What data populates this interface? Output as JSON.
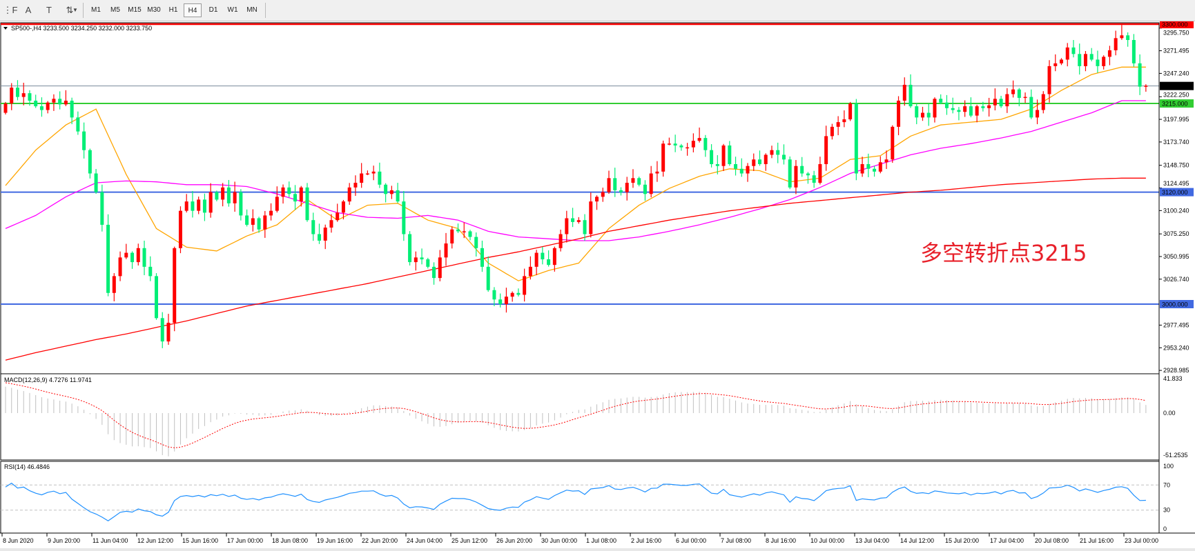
{
  "toolbar": {
    "icons": [
      "fibonacci-icon",
      "text-icon",
      "text-label-icon",
      "arrows-icon"
    ],
    "icon_glyphs": [
      "⋮F",
      "A",
      "T",
      "⇅"
    ],
    "timeframes": [
      "M1",
      "M5",
      "M15",
      "M30",
      "H1",
      "H4",
      "D1",
      "W1",
      "MN"
    ],
    "active_timeframe": "H4"
  },
  "chart": {
    "header": "SP500-,H4  3233.500 3234.250 3232.000 3233.750",
    "annotation": "多空转折点3215",
    "annotation_color": "#e8202a",
    "bull_color": "#ff0000",
    "bear_color": "#00ee76",
    "first_open": 3205,
    "closes": [
      3215,
      3232,
      3222,
      3226,
      3218,
      3212,
      3208,
      3216,
      3220,
      3214,
      3218,
      3200,
      3185,
      3165,
      3140,
      3120,
      3085,
      3012,
      3030,
      3050,
      3055,
      3045,
      3060,
      3040,
      3030,
      2985,
      2960,
      2980,
      3060,
      3100,
      3110,
      3100,
      3112,
      3098,
      3120,
      3112,
      3125,
      3108,
      3120,
      3095,
      3085,
      3092,
      3080,
      3095,
      3100,
      3115,
      3125,
      3118,
      3110,
      3125,
      3090,
      3075,
      3068,
      3082,
      3090,
      3098,
      3110,
      3125,
      3130,
      3140,
      3140,
      3142,
      3128,
      3118,
      3122,
      3110,
      3075,
      3045,
      3050,
      3048,
      3040,
      3028,
      3050,
      3065,
      3080,
      3078,
      3078,
      3072,
      3060,
      3040,
      3015,
      3005,
      3000,
      3008,
      3012,
      3010,
      3030,
      3040,
      3055,
      3048,
      3042,
      3060,
      3075,
      3092,
      3088,
      3090,
      3075,
      3110,
      3115,
      3120,
      3135,
      3122,
      3120,
      3130,
      3135,
      3128,
      3118,
      3140,
      3142,
      3172,
      3172,
      3170,
      3168,
      3168,
      3175,
      3178,
      3165,
      3150,
      3148,
      3170,
      3150,
      3145,
      3140,
      3148,
      3155,
      3150,
      3160,
      3165,
      3160,
      3155,
      3125,
      3148,
      3140,
      3138,
      3130,
      3150,
      3180,
      3190,
      3195,
      3198,
      3215,
      3140,
      3150,
      3145,
      3142,
      3152,
      3155,
      3190,
      3218,
      3235,
      3212,
      3200,
      3205,
      3200,
      3220,
      3216,
      3210,
      3208,
      3206,
      3212,
      3202,
      3212,
      3210,
      3213,
      3220,
      3212,
      3225,
      3230,
      3221,
      3222,
      3200,
      3208,
      3225,
      3255,
      3258,
      3262,
      3275,
      3268,
      3255,
      3268,
      3262,
      3255,
      3265,
      3272,
      3285,
      3288,
      3283,
      3258,
      3233,
      3234
    ],
    "moving_averages": [
      {
        "color": "#ffa500",
        "values": [
          3127,
          3165,
          3192,
          3209,
          3139,
          3081,
          3061,
          3057,
          3073,
          3085,
          3112,
          3090,
          3106,
          3108,
          3090,
          3081,
          3044,
          3025,
          3036,
          3044,
          3081,
          3106,
          3124,
          3137,
          3145,
          3143,
          3131,
          3135,
          3155,
          3159,
          3180,
          3192,
          3195,
          3198,
          3209,
          3229,
          3246,
          3254
        ]
      },
      {
        "color": "#ff00ff",
        "values": [
          3081,
          3095,
          3115,
          3130,
          3132,
          3131,
          3128,
          3128,
          3126,
          3118,
          3108,
          3098,
          3093,
          3092,
          3095,
          3090,
          3078,
          3072,
          3070,
          3068,
          3068,
          3072,
          3078,
          3085,
          3093,
          3102,
          3112,
          3125,
          3140,
          3150,
          3160,
          3167,
          3172,
          3178,
          3185,
          3195,
          3205,
          3218
        ]
      },
      {
        "color": "#ff0000",
        "values": [
          2940,
          2948,
          2955,
          2962,
          2968,
          2975,
          2982,
          2990,
          2998,
          3004,
          3010,
          3016,
          3022,
          3029,
          3036,
          3043,
          3050,
          3056,
          3063,
          3070,
          3078,
          3084,
          3090,
          3095,
          3100,
          3104,
          3108,
          3111,
          3114,
          3117,
          3120,
          3122,
          3125,
          3128,
          3130,
          3132,
          3134,
          3135
        ]
      }
    ],
    "hlines": [
      {
        "price": 3300,
        "label": "3300.000",
        "color": "#ff0000",
        "text_color": "#000000"
      },
      {
        "price": 3233.75,
        "label": "3233.750",
        "color": "#778899",
        "text_color": "#ffffff",
        "box": "#000000"
      },
      {
        "price": 3215,
        "label": "3215.000",
        "color": "#32cd32",
        "text_color": "#ffffff"
      },
      {
        "price": 3120,
        "label": "3120.000",
        "color": "#4169e1",
        "text_color": "#ffffff"
      },
      {
        "price": 3000,
        "label": "3000.000",
        "color": "#4169e1",
        "text_color": "#ffffff"
      }
    ],
    "price_ticks": [
      "3295.750",
      "3271.495",
      "3247.240",
      "3222.250",
      "3197.995",
      "3173.740",
      "3148.750",
      "3124.495",
      "3100.240",
      "3075.250",
      "3050.995",
      "3026.740",
      "2977.495",
      "2953.240",
      "2928.985"
    ]
  },
  "macd": {
    "label": "MACD(12,26,9) 4.7276 11.9741",
    "ticks": [
      "41.833",
      "0.00",
      "-51.2535"
    ],
    "hist_color": "#c0c0c0",
    "signal_color": "#ff0000"
  },
  "rsi": {
    "label": "RSI(14) 46.4846",
    "ticks": [
      "100",
      "70",
      "30",
      "0"
    ],
    "line_color": "#1e90ff"
  },
  "time_axis": [
    "8 Jun 2020",
    "9 Jun 20:00",
    "11 Jun 04:00",
    "12 Jun 12:00",
    "15 Jun 16:00",
    "17 Jun 00:00",
    "18 Jun 08:00",
    "19 Jun 16:00",
    "22 Jun 20:00",
    "24 Jun 04:00",
    "25 Jun 12:00",
    "26 Jun 20:00",
    "30 Jun 00:00",
    "1 Jul 08:00",
    "2 Jul 16:00",
    "6 Jul 00:00",
    "7 Jul 08:00",
    "8 Jul 16:00",
    "10 Jul 00:00",
    "13 Jul 04:00",
    "14 Jul 12:00",
    "15 Jul 20:00",
    "17 Jul 04:00",
    "20 Jul 08:00",
    "21 Jul 16:00",
    "23 Jul 00:00"
  ]
}
